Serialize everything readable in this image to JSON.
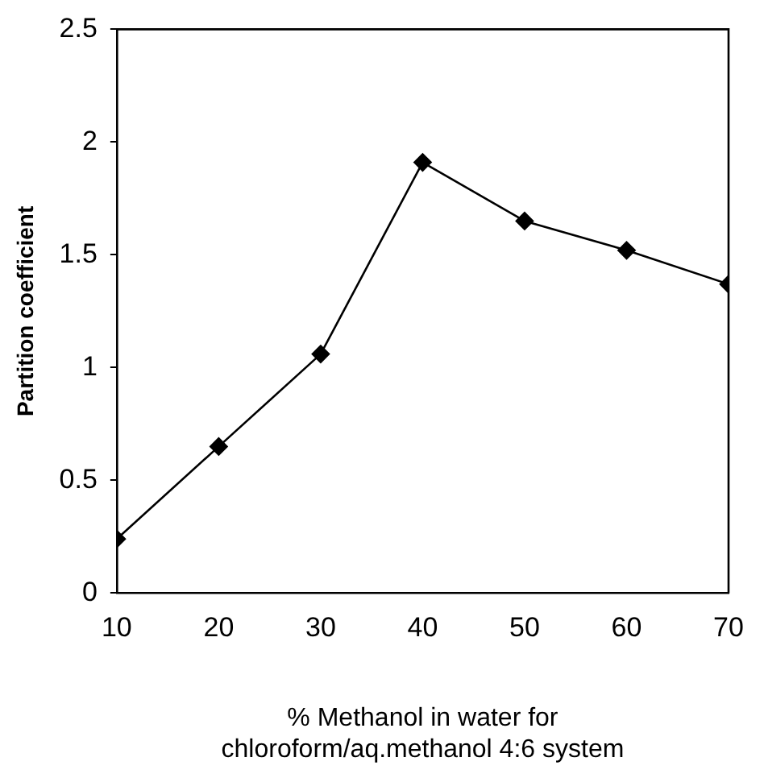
{
  "chart_data": {
    "type": "line",
    "xlabel": "% Methanol in water for\nchloroform/aq.methanol 4:6 system",
    "ylabel": "Partition coefficient",
    "x": [
      10,
      20,
      30,
      40,
      50,
      60,
      70
    ],
    "series": [
      {
        "color": "#000000",
        "values": [
          0.24,
          0.65,
          1.06,
          1.91,
          1.65,
          1.52,
          1.37
        ]
      }
    ],
    "xlim": [
      10,
      70
    ],
    "xticks": [
      10,
      20,
      30,
      40,
      50,
      60,
      70
    ],
    "ylim": [
      0,
      2.5
    ],
    "yticks": [
      0,
      0.5,
      1,
      1.5,
      2,
      2.5
    ],
    "grid": false,
    "legend": false,
    "marker": "diamond",
    "line_style": "solid"
  }
}
